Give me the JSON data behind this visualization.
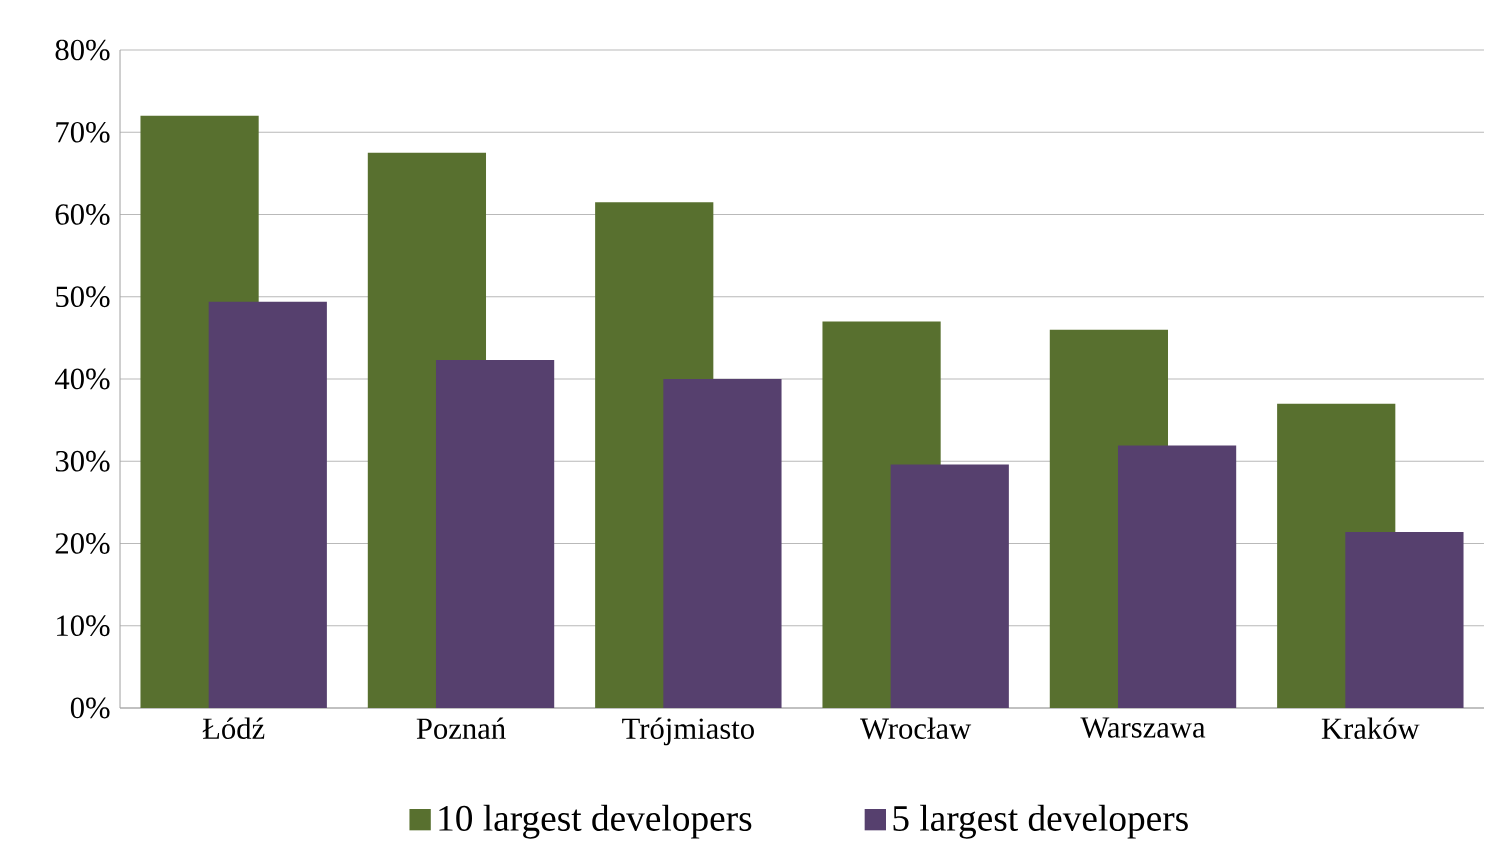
{
  "chart_data": {
    "type": "bar",
    "categories": [
      "Łódź",
      "Poznań",
      "Trójmiasto",
      "Wrocław",
      "Warszawa",
      "Kraków"
    ],
    "series": [
      {
        "name": "10 largest developers",
        "color": "#58702f",
        "values": [
          72,
          67.5,
          61.5,
          47,
          46,
          37
        ]
      },
      {
        "name": "5 largest developers",
        "color": "#56406e",
        "values": [
          49.4,
          42.3,
          40,
          29.6,
          31.9,
          21.4
        ]
      }
    ],
    "ylim": [
      0,
      80
    ],
    "yticks": [
      {
        "value": 0,
        "label": "0%"
      },
      {
        "value": 10,
        "label": "10%"
      },
      {
        "value": 20,
        "label": "20%"
      },
      {
        "value": 30,
        "label": "30%"
      },
      {
        "value": 40,
        "label": "40%"
      },
      {
        "value": 50,
        "label": "50%"
      },
      {
        "value": 60,
        "label": "60%"
      },
      {
        "value": 70,
        "label": "70%"
      },
      {
        "value": 80,
        "label": "80%"
      }
    ],
    "grid": "y",
    "legend": "bottom"
  }
}
